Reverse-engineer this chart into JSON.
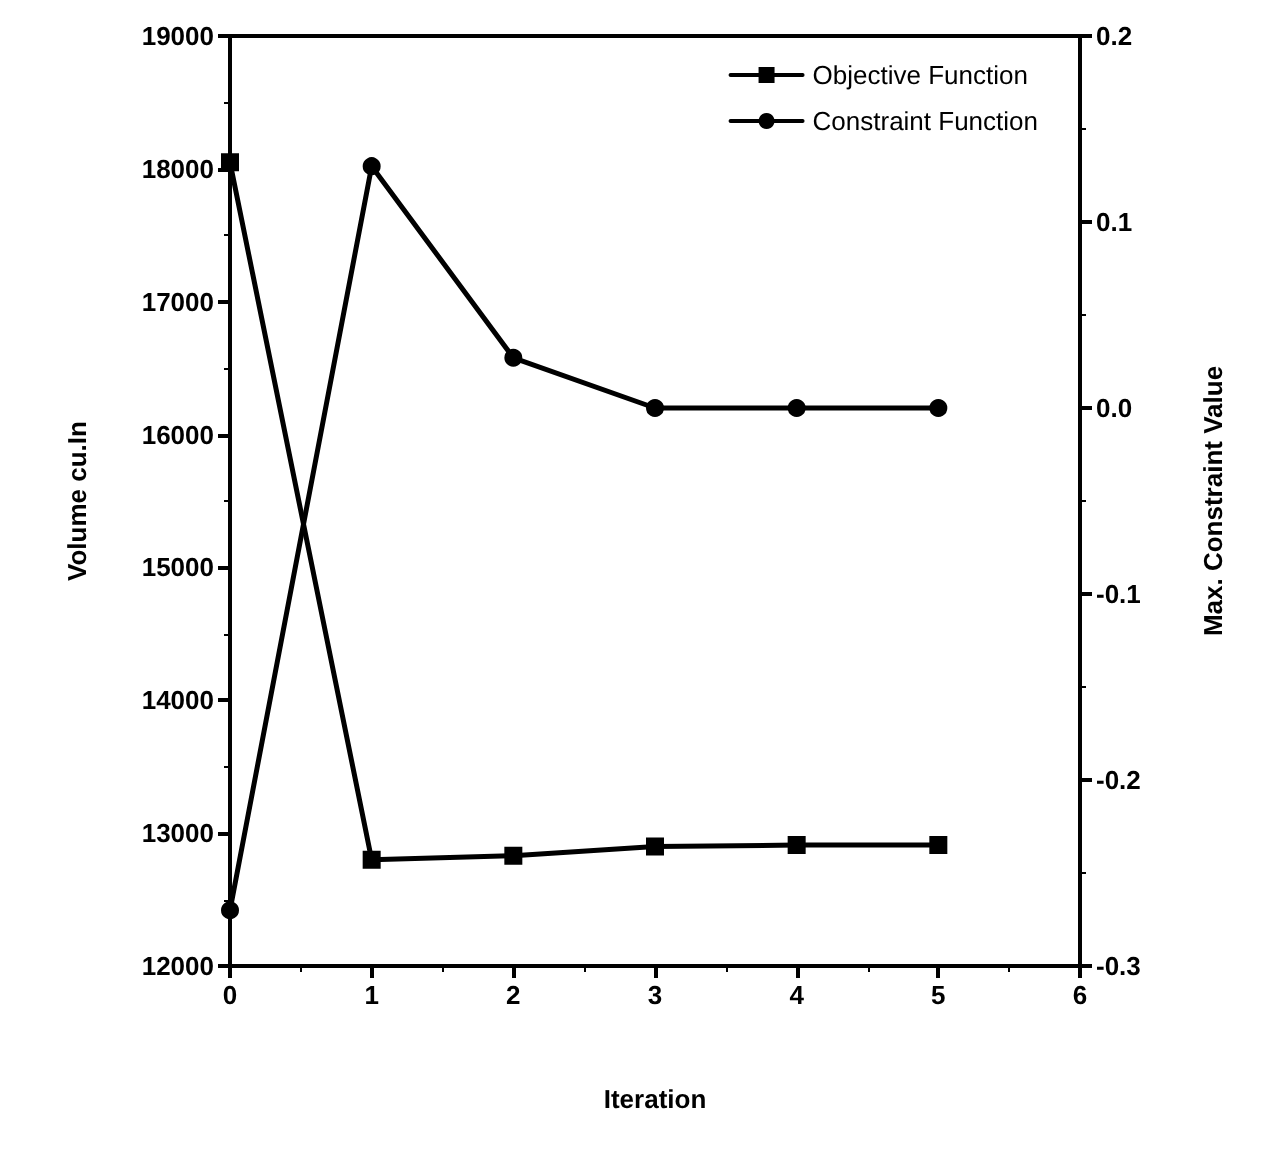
{
  "chart_data": {
    "type": "line",
    "xlabel": "Iteration",
    "ylabel": "Volume cu.In",
    "y2label": "Max. Constraint Value",
    "x": [
      0,
      1,
      2,
      3,
      4,
      5
    ],
    "series": [
      {
        "name": "Objective Function",
        "color": "#000000",
        "marker": "square",
        "values": [
          18050,
          12800,
          12830,
          12900,
          12910,
          12910
        ]
      },
      {
        "name": "Constraint Function",
        "color": "#000000",
        "marker": "circle",
        "axis": "y2",
        "values": [
          -0.27,
          0.13,
          0.027,
          0,
          0,
          0
        ]
      }
    ],
    "xlim": [
      0,
      6
    ],
    "xticks": [
      0,
      1,
      2,
      3,
      4,
      5,
      6
    ],
    "ylim": [
      12000,
      19000
    ],
    "yticks": [
      12000,
      13000,
      14000,
      15000,
      16000,
      17000,
      18000,
      19000
    ],
    "y2lim": [
      -0.3,
      0.2
    ],
    "y2ticks": [
      -0.3,
      -0.2,
      -0.1,
      {
        "value": 0,
        "label": "0.0"
      },
      0.1,
      0.2
    ],
    "grid": false,
    "legend": "top right",
    "line_style": "solid"
  }
}
